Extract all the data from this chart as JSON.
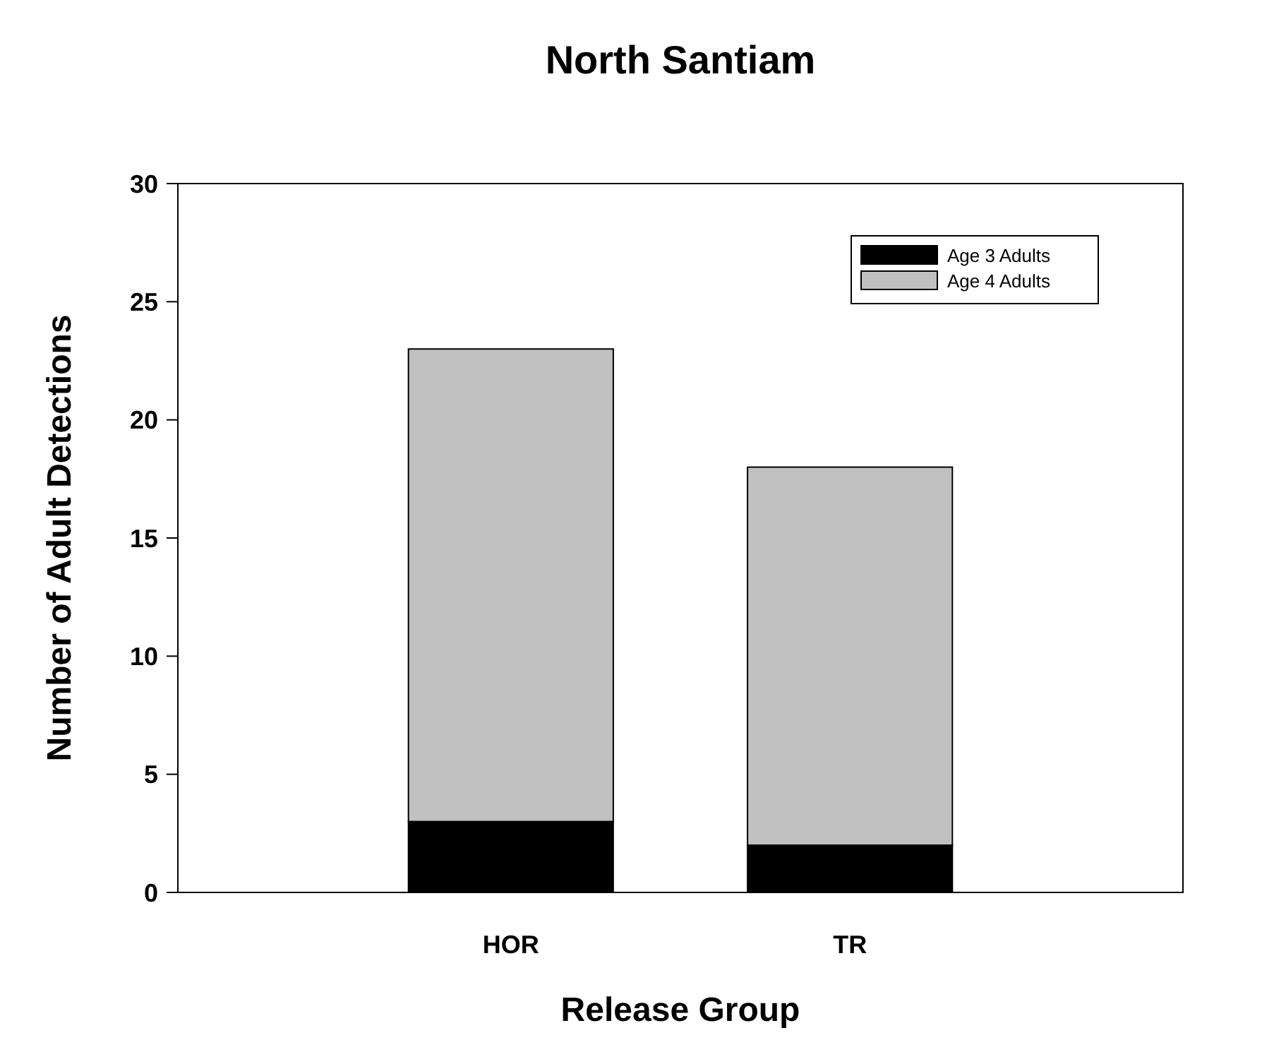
{
  "chart_data": {
    "type": "bar",
    "title": "North Santiam",
    "xlabel": "Release Group",
    "ylabel": "Number of Adult Detections",
    "categories": [
      "HOR",
      "TR"
    ],
    "stacked": true,
    "series": [
      {
        "name": "Age 3 Adults",
        "color": "#000000",
        "values": [
          3,
          2
        ]
      },
      {
        "name": "Age 4 Adults",
        "color": "#c0c0c0",
        "values": [
          20,
          16
        ]
      }
    ],
    "ylim": [
      0,
      30
    ],
    "yticks": [
      0,
      5,
      10,
      15,
      20,
      25,
      30
    ],
    "legend": "top right",
    "grid": false
  }
}
